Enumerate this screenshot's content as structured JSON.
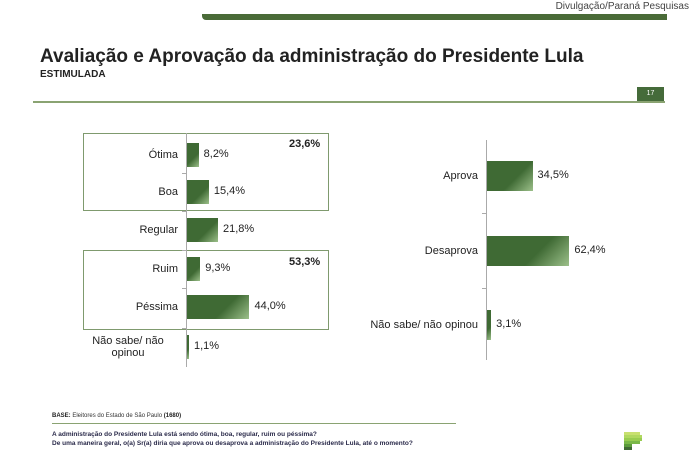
{
  "credit": "Divulgação/Paraná Pesquisas",
  "header": {
    "title": "Avaliação e Aprovação da administração do Presidente Lula",
    "subtitle": "ESTIMULADA",
    "page_number": "17"
  },
  "colors": {
    "accent": "#456b3a",
    "bar": "#3f6a34",
    "rule": "#8aa372"
  },
  "chart_data": [
    {
      "type": "bar",
      "orientation": "horizontal",
      "title": "Avaliação",
      "categories": [
        "Ótima",
        "Boa",
        "Regular",
        "Ruim",
        "Péssima",
        "Não sabe/ não opinou"
      ],
      "values": [
        8.2,
        15.4,
        21.8,
        9.3,
        44.0,
        1.1
      ],
      "value_labels": [
        "8,2%",
        "15,4%",
        "21,8%",
        "9,3%",
        "44,0%",
        "1,1%"
      ],
      "groups": [
        {
          "members": [
            "Ótima",
            "Boa"
          ],
          "total_label": "23,6%",
          "total": 23.6
        },
        {
          "members": [
            "Ruim",
            "Péssima"
          ],
          "total_label": "53,3%",
          "total": 53.3
        }
      ],
      "xlim": [
        0,
        100
      ],
      "grid": false
    },
    {
      "type": "bar",
      "orientation": "horizontal",
      "title": "Aprovação",
      "categories": [
        "Aprova",
        "Desaprova",
        "Não sabe/ não opinou"
      ],
      "values": [
        34.5,
        62.4,
        3.1
      ],
      "value_labels": [
        "34,5%",
        "62,4%",
        "3,1%"
      ],
      "xlim": [
        0,
        100
      ],
      "grid": false
    }
  ],
  "footer": {
    "base_label": "BASE:",
    "base_text": "Eleitores do Estado de São Paulo",
    "base_n": "(1680)",
    "question1": "A administração do Presidente Lula está sendo ótima, boa, regular, ruim ou péssima?",
    "question2": "De uma maneira geral, o(a) Sr(a) diria que aprova ou desaprova a administração do Presidente Lula, até o momento?"
  }
}
